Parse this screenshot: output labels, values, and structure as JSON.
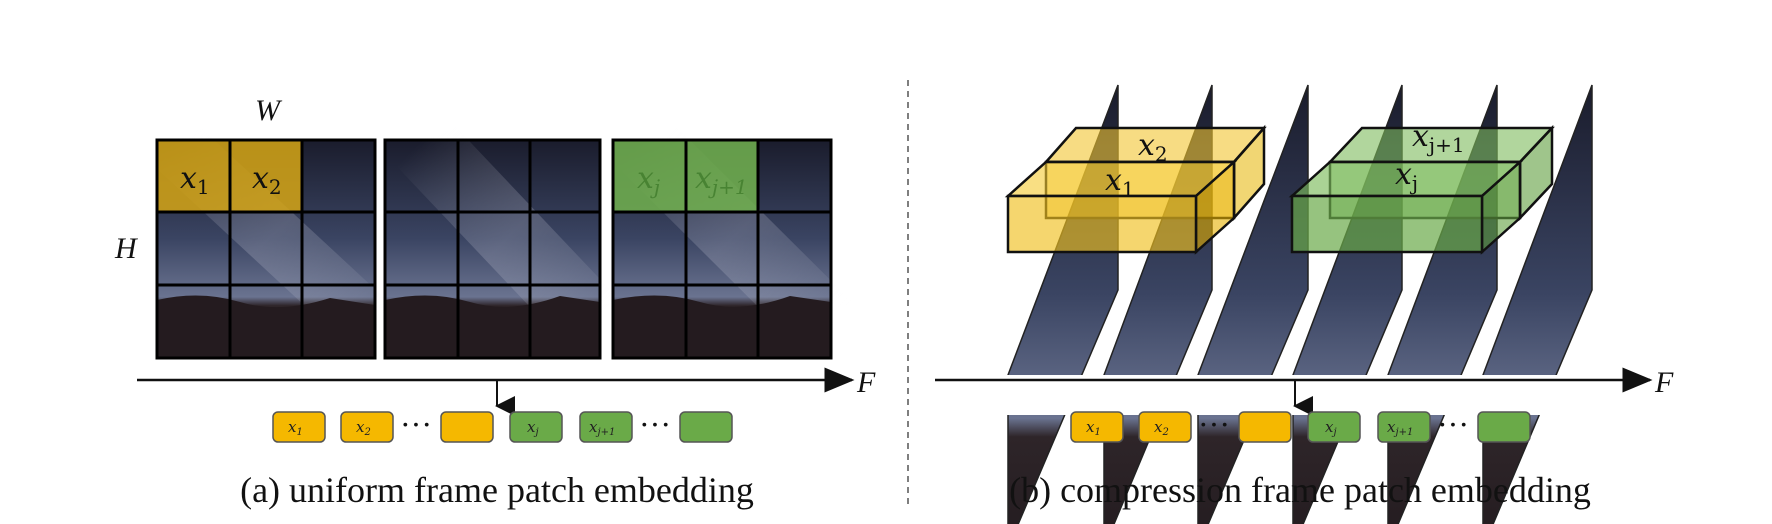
{
  "panel_a": {
    "caption": "(a) uniform frame patch embedding",
    "width_label": "W",
    "height_label": "H",
    "axis_label": "F",
    "patches": {
      "p1": "x",
      "p1_sub": "1",
      "p2": "x",
      "p2_sub": "2",
      "pj": "x",
      "pj_sub": "j",
      "pj1": "x",
      "pj1_sub": "j+1"
    },
    "tokens": [
      {
        "base": "x",
        "sub": "1",
        "color": "yellow"
      },
      {
        "base": "x",
        "sub": "2",
        "color": "yellow"
      },
      {
        "base": "",
        "sub": "",
        "color": "yellow"
      },
      {
        "base": "x",
        "sub": "j",
        "color": "green"
      },
      {
        "base": "x",
        "sub": "j+1",
        "color": "green"
      },
      {
        "base": "",
        "sub": "",
        "color": "green"
      }
    ],
    "ellipsis": "···"
  },
  "panel_b": {
    "caption": "(b) compression frame patch embedding",
    "axis_label": "F",
    "tubes": {
      "t1": "x",
      "t1_sub": "1",
      "t2": "x",
      "t2_sub": "2",
      "tj": "x",
      "tj_sub": "j",
      "tj1": "x",
      "tj1_sub": "j+1"
    },
    "tokens": [
      {
        "base": "x",
        "sub": "1",
        "color": "yellow"
      },
      {
        "base": "x",
        "sub": "2",
        "color": "yellow"
      },
      {
        "base": "",
        "sub": "",
        "color": "yellow"
      },
      {
        "base": "x",
        "sub": "j",
        "color": "green"
      },
      {
        "base": "x",
        "sub": "j+1",
        "color": "green"
      },
      {
        "base": "",
        "sub": "",
        "color": "green"
      }
    ],
    "ellipsis": "···"
  },
  "colors": {
    "yellow": "#f5b800",
    "green": "#6aaa48",
    "token_border": "#555555",
    "sky_top": "#1b1d2e",
    "sky_mid": "#4b5674",
    "ground": "#2a2125"
  }
}
